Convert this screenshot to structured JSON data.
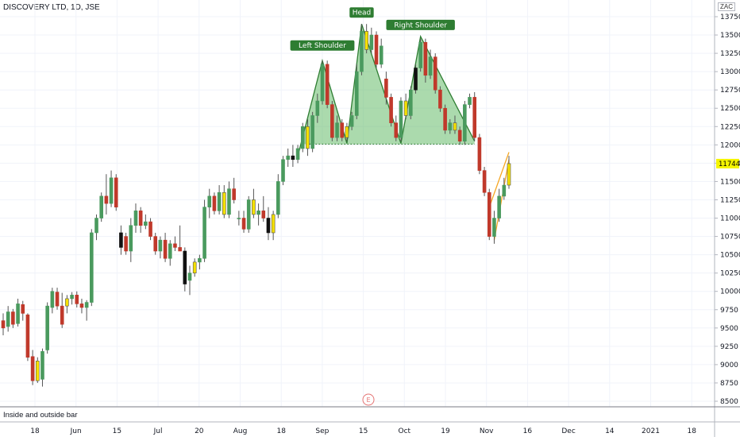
{
  "header": {
    "symbol_line": "DISCOVERY LTD, 1D, JSE",
    "currency": "ZAC"
  },
  "indicator": {
    "label": "Inside and outside bar"
  },
  "event_marker": "E",
  "chart_data": {
    "type": "candlestick",
    "ylim": [
      8400,
      13850
    ],
    "y_ticks": [
      8500,
      8750,
      9000,
      9250,
      9500,
      9750,
      10000,
      10250,
      10500,
      10750,
      11000,
      11250,
      11500,
      11750,
      12000,
      12250,
      12500,
      12750,
      13000,
      13250,
      13500,
      13750
    ],
    "x_ticks": [
      "18",
      "Jun",
      "15",
      "Jul",
      "20",
      "Aug",
      "18",
      "Sep",
      "15",
      "Oct",
      "19",
      "Nov",
      "16",
      "Dec",
      "14",
      "2021",
      "18"
    ],
    "last_price": "11744",
    "annotations": [
      {
        "label": "Left Shoulder",
        "price": 13200
      },
      {
        "label": "Head",
        "price": 13650
      },
      {
        "label": "Right Shoulder",
        "price": 13480
      }
    ],
    "neckline_price": 12010,
    "candles": [
      {
        "o": 9600,
        "h": 9700,
        "l": 9400,
        "c": 9500,
        "col": "r"
      },
      {
        "o": 9520,
        "h": 9800,
        "l": 9450,
        "c": 9720,
        "col": "g"
      },
      {
        "o": 9720,
        "h": 9760,
        "l": 9500,
        "c": 9550,
        "col": "r"
      },
      {
        "o": 9560,
        "h": 9900,
        "l": 9520,
        "c": 9830,
        "col": "g"
      },
      {
        "o": 9820,
        "h": 9870,
        "l": 9600,
        "c": 9700,
        "col": "r"
      },
      {
        "o": 9680,
        "h": 9700,
        "l": 9050,
        "c": 9100,
        "col": "r"
      },
      {
        "o": 9110,
        "h": 9200,
        "l": 8720,
        "c": 8780,
        "col": "r"
      },
      {
        "o": 8780,
        "h": 9100,
        "l": 8750,
        "c": 9050,
        "col": "y"
      },
      {
        "o": 8800,
        "h": 9220,
        "l": 8700,
        "c": 9180,
        "col": "g"
      },
      {
        "o": 9200,
        "h": 9850,
        "l": 9150,
        "c": 9800,
        "col": "g"
      },
      {
        "o": 9780,
        "h": 10050,
        "l": 9700,
        "c": 10000,
        "col": "g"
      },
      {
        "o": 9990,
        "h": 10050,
        "l": 9750,
        "c": 9800,
        "col": "r"
      },
      {
        "o": 9800,
        "h": 9980,
        "l": 9500,
        "c": 9550,
        "col": "r"
      },
      {
        "o": 9800,
        "h": 9950,
        "l": 9700,
        "c": 9900,
        "col": "y"
      },
      {
        "o": 9900,
        "h": 9990,
        "l": 9820,
        "c": 9950,
        "col": "g"
      },
      {
        "o": 9950,
        "h": 10000,
        "l": 9780,
        "c": 9830,
        "col": "r"
      },
      {
        "o": 9830,
        "h": 9900,
        "l": 9700,
        "c": 9780,
        "col": "r"
      },
      {
        "o": 9780,
        "h": 9880,
        "l": 9600,
        "c": 9850,
        "col": "g"
      },
      {
        "o": 9850,
        "h": 10850,
        "l": 9800,
        "c": 10800,
        "col": "g"
      },
      {
        "o": 10800,
        "h": 11050,
        "l": 10700,
        "c": 11000,
        "col": "g"
      },
      {
        "o": 11000,
        "h": 11350,
        "l": 10950,
        "c": 11300,
        "col": "g"
      },
      {
        "o": 11300,
        "h": 11600,
        "l": 11050,
        "c": 11200,
        "col": "r"
      },
      {
        "o": 11200,
        "h": 11650,
        "l": 11150,
        "c": 11550,
        "col": "g"
      },
      {
        "o": 11550,
        "h": 11600,
        "l": 11100,
        "c": 11150,
        "col": "r"
      },
      {
        "o": 10800,
        "h": 10900,
        "l": 10500,
        "c": 10600,
        "col": "b"
      },
      {
        "o": 10750,
        "h": 10800,
        "l": 10500,
        "c": 10550,
        "col": "r"
      },
      {
        "o": 10550,
        "h": 11000,
        "l": 10400,
        "c": 10900,
        "col": "g"
      },
      {
        "o": 10900,
        "h": 11200,
        "l": 10800,
        "c": 11100,
        "col": "g"
      },
      {
        "o": 11100,
        "h": 11150,
        "l": 10800,
        "c": 10900,
        "col": "r"
      },
      {
        "o": 10900,
        "h": 11050,
        "l": 10850,
        "c": 10950,
        "col": "g"
      },
      {
        "o": 10950,
        "h": 11000,
        "l": 10700,
        "c": 10750,
        "col": "r"
      },
      {
        "o": 10750,
        "h": 10800,
        "l": 10500,
        "c": 10550,
        "col": "r"
      },
      {
        "o": 10550,
        "h": 10750,
        "l": 10450,
        "c": 10700,
        "col": "g"
      },
      {
        "o": 10700,
        "h": 10800,
        "l": 10400,
        "c": 10450,
        "col": "r"
      },
      {
        "o": 10450,
        "h": 10700,
        "l": 10350,
        "c": 10650,
        "col": "g"
      },
      {
        "o": 10650,
        "h": 10750,
        "l": 10550,
        "c": 10600,
        "col": "r"
      },
      {
        "o": 10600,
        "h": 10900,
        "l": 10550,
        "c": 10550,
        "col": "r"
      },
      {
        "o": 10550,
        "h": 10600,
        "l": 10000,
        "c": 10100,
        "col": "b"
      },
      {
        "o": 10150,
        "h": 10350,
        "l": 9950,
        "c": 10250,
        "col": "g"
      },
      {
        "o": 10250,
        "h": 10450,
        "l": 10200,
        "c": 10400,
        "col": "y"
      },
      {
        "o": 10400,
        "h": 10500,
        "l": 10300,
        "c": 10450,
        "col": "g"
      },
      {
        "o": 10450,
        "h": 11250,
        "l": 10400,
        "c": 11150,
        "col": "g"
      },
      {
        "o": 11150,
        "h": 11400,
        "l": 11000,
        "c": 11300,
        "col": "g"
      },
      {
        "o": 11300,
        "h": 11350,
        "l": 11050,
        "c": 11100,
        "col": "r"
      },
      {
        "o": 11100,
        "h": 11450,
        "l": 11050,
        "c": 11350,
        "col": "g"
      },
      {
        "o": 11350,
        "h": 11450,
        "l": 11000,
        "c": 11050,
        "col": "y"
      },
      {
        "o": 11050,
        "h": 11500,
        "l": 11000,
        "c": 11400,
        "col": "g"
      },
      {
        "o": 11400,
        "h": 11550,
        "l": 11200,
        "c": 11250,
        "col": "r"
      },
      {
        "o": 11000,
        "h": 11100,
        "l": 10900,
        "c": 11000,
        "col": "g"
      },
      {
        "o": 11000,
        "h": 11100,
        "l": 10800,
        "c": 10850,
        "col": "r"
      },
      {
        "o": 10850,
        "h": 11300,
        "l": 10800,
        "c": 11250,
        "col": "g"
      },
      {
        "o": 11250,
        "h": 11400,
        "l": 11000,
        "c": 11050,
        "col": "y"
      },
      {
        "o": 11050,
        "h": 11200,
        "l": 10900,
        "c": 11100,
        "col": "g"
      },
      {
        "o": 11100,
        "h": 11300,
        "l": 10950,
        "c": 11000,
        "col": "r"
      },
      {
        "o": 11000,
        "h": 11150,
        "l": 10700,
        "c": 10800,
        "col": "b"
      },
      {
        "o": 10800,
        "h": 11100,
        "l": 10700,
        "c": 11050,
        "col": "y"
      },
      {
        "o": 11050,
        "h": 11600,
        "l": 11000,
        "c": 11500,
        "col": "g"
      },
      {
        "o": 11500,
        "h": 11850,
        "l": 11450,
        "c": 11800,
        "col": "g"
      },
      {
        "o": 11800,
        "h": 11950,
        "l": 11700,
        "c": 11850,
        "col": "g"
      },
      {
        "o": 11850,
        "h": 12000,
        "l": 11700,
        "c": 11800,
        "col": "b"
      },
      {
        "o": 11800,
        "h": 12000,
        "l": 11750,
        "c": 11950,
        "col": "g"
      },
      {
        "o": 11950,
        "h": 12300,
        "l": 11900,
        "c": 12250,
        "col": "g"
      },
      {
        "o": 12250,
        "h": 12350,
        "l": 11850,
        "c": 11950,
        "col": "y"
      },
      {
        "o": 11950,
        "h": 12450,
        "l": 11900,
        "c": 12400,
        "col": "g"
      },
      {
        "o": 12400,
        "h": 12700,
        "l": 12300,
        "c": 12600,
        "col": "g"
      },
      {
        "o": 12600,
        "h": 13150,
        "l": 12550,
        "c": 13100,
        "col": "g"
      },
      {
        "o": 13100,
        "h": 13150,
        "l": 12500,
        "c": 12550,
        "col": "r"
      },
      {
        "o": 12550,
        "h": 12600,
        "l": 12050,
        "c": 12100,
        "col": "r"
      },
      {
        "o": 12100,
        "h": 12400,
        "l": 12050,
        "c": 12300,
        "col": "g"
      },
      {
        "o": 12300,
        "h": 12350,
        "l": 12050,
        "c": 12100,
        "col": "r"
      },
      {
        "o": 12100,
        "h": 12300,
        "l": 12050,
        "c": 12250,
        "col": "y"
      },
      {
        "o": 12250,
        "h": 12450,
        "l": 12200,
        "c": 12400,
        "col": "g"
      },
      {
        "o": 12400,
        "h": 13100,
        "l": 12350,
        "c": 13000,
        "col": "g"
      },
      {
        "o": 13000,
        "h": 13650,
        "l": 12950,
        "c": 13550,
        "col": "g"
      },
      {
        "o": 13550,
        "h": 13650,
        "l": 13250,
        "c": 13300,
        "col": "y"
      },
      {
        "o": 13300,
        "h": 13600,
        "l": 13250,
        "c": 13500,
        "col": "g"
      },
      {
        "o": 13500,
        "h": 13550,
        "l": 13050,
        "c": 13100,
        "col": "r"
      },
      {
        "o": 13100,
        "h": 13450,
        "l": 13050,
        "c": 13350,
        "col": "g"
      },
      {
        "o": 12900,
        "h": 13000,
        "l": 12550,
        "c": 12650,
        "col": "r"
      },
      {
        "o": 12650,
        "h": 12700,
        "l": 12250,
        "c": 12300,
        "col": "r"
      },
      {
        "o": 12300,
        "h": 12400,
        "l": 12050,
        "c": 12100,
        "col": "r"
      },
      {
        "o": 12100,
        "h": 12650,
        "l": 12050,
        "c": 12600,
        "col": "g"
      },
      {
        "o": 12600,
        "h": 12700,
        "l": 12350,
        "c": 12400,
        "col": "y"
      },
      {
        "o": 12400,
        "h": 12800,
        "l": 12350,
        "c": 12750,
        "col": "g"
      },
      {
        "o": 12750,
        "h": 13100,
        "l": 12700,
        "c": 13050,
        "col": "b"
      },
      {
        "o": 13050,
        "h": 13450,
        "l": 13000,
        "c": 13400,
        "col": "g"
      },
      {
        "o": 13400,
        "h": 13450,
        "l": 12850,
        "c": 12950,
        "col": "r"
      },
      {
        "o": 12950,
        "h": 13300,
        "l": 12900,
        "c": 13200,
        "col": "g"
      },
      {
        "o": 13200,
        "h": 13250,
        "l": 12700,
        "c": 12750,
        "col": "r"
      },
      {
        "o": 12750,
        "h": 12800,
        "l": 12450,
        "c": 12500,
        "col": "r"
      },
      {
        "o": 12500,
        "h": 12550,
        "l": 12150,
        "c": 12200,
        "col": "r"
      },
      {
        "o": 12200,
        "h": 12350,
        "l": 12150,
        "c": 12300,
        "col": "g"
      },
      {
        "o": 12300,
        "h": 12400,
        "l": 12150,
        "c": 12200,
        "col": "y"
      },
      {
        "o": 12200,
        "h": 12250,
        "l": 12000,
        "c": 12050,
        "col": "r"
      },
      {
        "o": 12050,
        "h": 12600,
        "l": 12000,
        "c": 12550,
        "col": "g"
      },
      {
        "o": 12550,
        "h": 12700,
        "l": 12500,
        "c": 12650,
        "col": "g"
      },
      {
        "o": 12650,
        "h": 12720,
        "l": 12050,
        "c": 12100,
        "col": "r"
      },
      {
        "o": 12100,
        "h": 12150,
        "l": 11600,
        "c": 11650,
        "col": "r"
      },
      {
        "o": 11650,
        "h": 11700,
        "l": 11300,
        "c": 11350,
        "col": "r"
      },
      {
        "o": 11350,
        "h": 11400,
        "l": 10700,
        "c": 10750,
        "col": "r"
      },
      {
        "o": 10750,
        "h": 11100,
        "l": 10650,
        "c": 11000,
        "col": "g"
      },
      {
        "o": 11000,
        "h": 11400,
        "l": 10950,
        "c": 11300,
        "col": "g"
      },
      {
        "o": 11300,
        "h": 11550,
        "l": 11250,
        "c": 11450,
        "col": "g"
      },
      {
        "o": 11450,
        "h": 11850,
        "l": 11400,
        "c": 11744,
        "col": "y"
      }
    ]
  }
}
